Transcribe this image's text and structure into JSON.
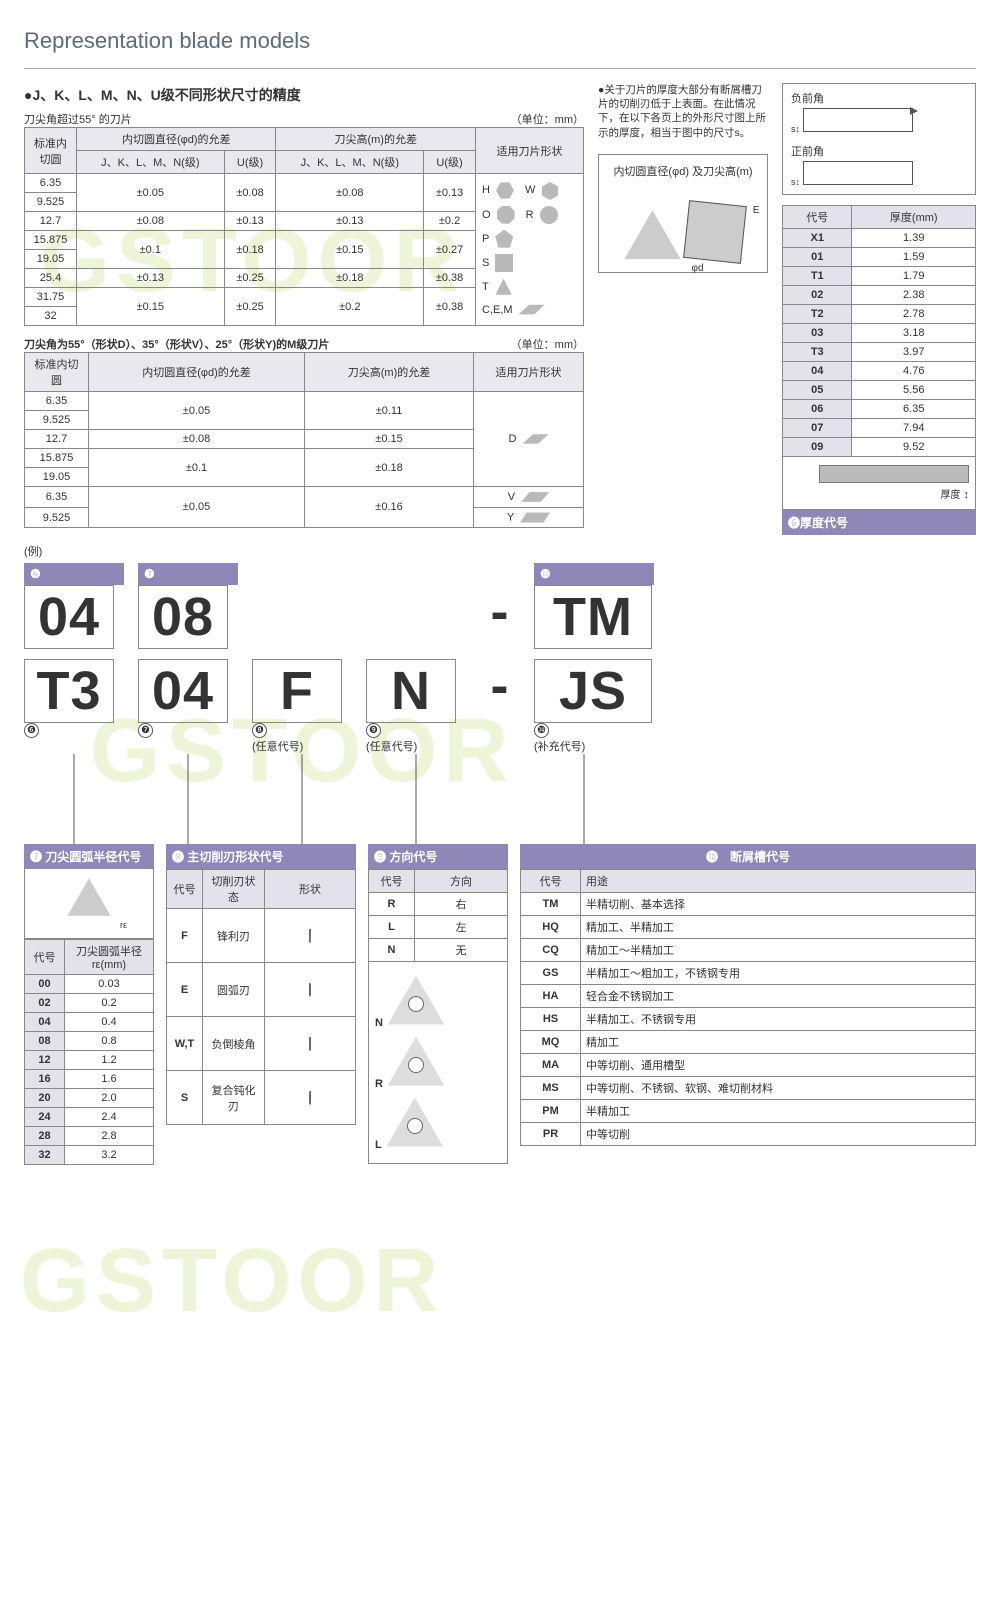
{
  "title": "Representation blade models",
  "watermark": "GSTOOR",
  "section1": {
    "heading": "●J、K、L、M、N、U级不同形状尺寸的精度",
    "sub": "刀尖角超过55° 的刀片",
    "unit": "（单位：mm）",
    "cols": {
      "a": "标准内切圆",
      "b": "内切圆直径(φd)的允差",
      "c": "刀尖高(m)的允差",
      "d": "适用刀片形状",
      "b1": "J、K、L、M、N(级)",
      "b2": "U(级)",
      "c1": "J、K、L、M、N(级)",
      "c2": "U(级)"
    },
    "rows": [
      {
        "ic": "6.35",
        "d1": "±0.05",
        "d2": "±0.08",
        "m1": "±0.08",
        "m2": "±0.13"
      },
      {
        "ic": "9.525",
        "d1": "",
        "d2": "",
        "m1": "",
        "m2": ""
      },
      {
        "ic": "12.7",
        "d1": "±0.08",
        "d2": "±0.13",
        "m1": "±0.13",
        "m2": "±0.2"
      },
      {
        "ic": "15.875",
        "d1": "±0.1",
        "d2": "±0.18",
        "m1": "±0.15",
        "m2": "±0.27"
      },
      {
        "ic": "19.05",
        "d1": "",
        "d2": "",
        "m1": "",
        "m2": ""
      },
      {
        "ic": "25.4",
        "d1": "±0.13",
        "d2": "±0.25",
        "m1": "±0.18",
        "m2": "±0.38"
      },
      {
        "ic": "31.75",
        "d1": "±0.15",
        "d2": "±0.25",
        "m1": "±0.2",
        "m2": "±0.38"
      },
      {
        "ic": "32",
        "d1": "",
        "d2": "",
        "m1": "",
        "m2": ""
      }
    ],
    "shapes": [
      {
        "c": "H"
      },
      {
        "c": "W"
      },
      {
        "c": "O"
      },
      {
        "c": "R"
      },
      {
        "c": "P"
      },
      {
        "c": "S"
      },
      {
        "c": "T"
      },
      {
        "c": "C,E,M"
      }
    ]
  },
  "section2": {
    "heading": "刀尖角为55°（形状D）、35°（形状V）、25°（形状Y)的M级刀片",
    "unit": "（单位：mm）",
    "cols": {
      "a": "标准内切圆",
      "b": "内切圆直径(φd)的允差",
      "c": "刀尖高(m)的允差",
      "d": "适用刀片形状"
    },
    "rows": [
      {
        "ic": "6.35",
        "d": "±0.05",
        "m": "±0.11",
        "s": ""
      },
      {
        "ic": "9.525",
        "d": "",
        "m": "",
        "s": ""
      },
      {
        "ic": "12.7",
        "d": "±0.08",
        "m": "±0.15",
        "s": "D"
      },
      {
        "ic": "15.875",
        "d": "±0.1",
        "m": "±0.18",
        "s": ""
      },
      {
        "ic": "19.05",
        "d": "",
        "m": "",
        "s": ""
      },
      {
        "ic": "6.35",
        "d": "±0.05",
        "m": "±0.16",
        "s": "V"
      },
      {
        "ic": "9.525",
        "d": "",
        "m": "",
        "s": "Y"
      }
    ]
  },
  "sideNote": "●关于刀片的厚度大部分有断屑槽刀片的切削刃低于上表面。在此情况下，在以下各页上的外形尺寸图上所示的厚度，相当于图中的尺寸s。",
  "rake": {
    "neg": "负前角",
    "pos": "正前角"
  },
  "diagLabel": "内切圆直径(φd) 及刀尖高(m)",
  "thickness": {
    "header": {
      "code": "代号",
      "val": "厚度(mm)"
    },
    "rows": [
      {
        "c": "X1",
        "v": "1.39"
      },
      {
        "c": "01",
        "v": "1.59"
      },
      {
        "c": "T1",
        "v": "1.79"
      },
      {
        "c": "02",
        "v": "2.38"
      },
      {
        "c": "T2",
        "v": "2.78"
      },
      {
        "c": "03",
        "v": "3.18"
      },
      {
        "c": "T3",
        "v": "3.97"
      },
      {
        "c": "04",
        "v": "4.76"
      },
      {
        "c": "05",
        "v": "5.56"
      },
      {
        "c": "06",
        "v": "6.35"
      },
      {
        "c": "07",
        "v": "7.94"
      },
      {
        "c": "09",
        "v": "9.52"
      }
    ],
    "thk_label": "厚度",
    "footer": "❻厚度代号"
  },
  "codeRow1": [
    "04",
    "08",
    "",
    "",
    "-",
    "TM"
  ],
  "codeRow2": [
    "T3",
    "04",
    "F",
    "N",
    "-",
    "JS"
  ],
  "codeMarks": {
    "m6": "❻",
    "m7": "❼",
    "m8": "❽",
    "m9": "❾",
    "m10": "❿"
  },
  "optLabels": {
    "any": "(任意代号)",
    "supp": "(补充代号)",
    "ex": "(例)"
  },
  "panel7": {
    "title": "❼ 刀尖圆弧半径代号",
    "col1": "代号",
    "col2": "刀尖圆弧半径rε(mm)",
    "rows": [
      {
        "c": "00",
        "v": "0.03"
      },
      {
        "c": "02",
        "v": "0.2"
      },
      {
        "c": "04",
        "v": "0.4"
      },
      {
        "c": "08",
        "v": "0.8"
      },
      {
        "c": "12",
        "v": "1.2"
      },
      {
        "c": "16",
        "v": "1.6"
      },
      {
        "c": "20",
        "v": "2.0"
      },
      {
        "c": "24",
        "v": "2.4"
      },
      {
        "c": "28",
        "v": "2.8"
      },
      {
        "c": "32",
        "v": "3.2"
      }
    ]
  },
  "panel8": {
    "title": "❽ 主切削刃形状代号",
    "cols": {
      "a": "代号",
      "b": "切削刃状态",
      "c": "形状"
    },
    "rows": [
      {
        "c": "F",
        "n": "锋利刃"
      },
      {
        "c": "E",
        "n": "圆弧刃"
      },
      {
        "c": "W,T",
        "n": "负倒棱角"
      },
      {
        "c": "S",
        "n": "复合钝化刃"
      }
    ]
  },
  "panel9": {
    "title": "❾ 方向代号",
    "cols": {
      "a": "代号",
      "b": "方向"
    },
    "rows": [
      {
        "c": "R",
        "n": "右"
      },
      {
        "c": "L",
        "n": "左"
      },
      {
        "c": "N",
        "n": "无"
      }
    ],
    "tris": [
      "N",
      "R",
      "L"
    ]
  },
  "panel10": {
    "title": "❿　断屑槽代号",
    "cols": {
      "a": "代号",
      "b": "用途"
    },
    "rows": [
      {
        "c": "TM",
        "n": "半精切削、基本选择"
      },
      {
        "c": "HQ",
        "n": "精加工、半精加工"
      },
      {
        "c": "CQ",
        "n": "精加工～半精加工"
      },
      {
        "c": "GS",
        "n": "半精加工～粗加工，不锈钢专用"
      },
      {
        "c": "HA",
        "n": "轻合金不锈钢加工"
      },
      {
        "c": "HS",
        "n": "半精加工、不锈钢专用"
      },
      {
        "c": "MQ",
        "n": "精加工"
      },
      {
        "c": "MA",
        "n": "中等切削、通用槽型"
      },
      {
        "c": "MS",
        "n": "中等切削、不锈钢、软钢、难切削材料"
      },
      {
        "c": "PM",
        "n": "半精加工"
      },
      {
        "c": "PR",
        "n": "中等切削"
      }
    ]
  },
  "colors": {
    "purple": "#8e87b7",
    "shade": "#e3e1ea",
    "border": "#888"
  }
}
